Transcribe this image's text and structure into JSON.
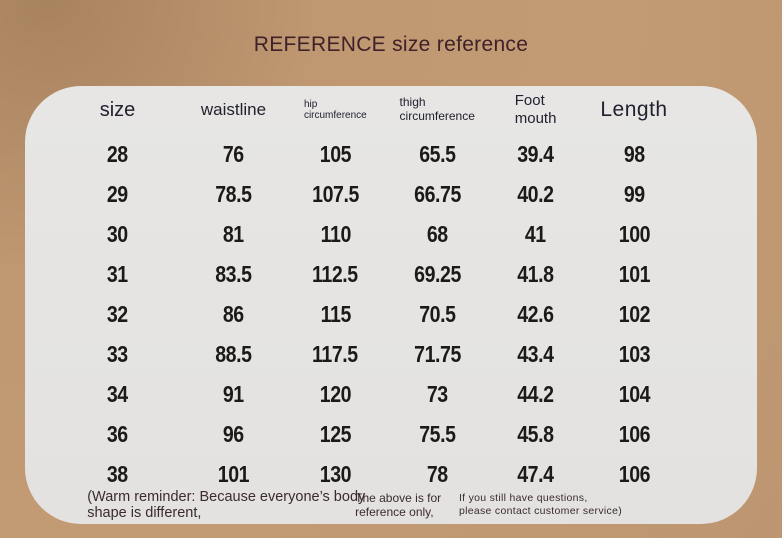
{
  "page": {
    "title": "REFERENCE size reference"
  },
  "colors": {
    "background_tan": "#bf9872",
    "background_corner_shade": "#a8835d",
    "card_background": "#e5e4e2",
    "title_text": "#3f2129",
    "header_text": "#232130",
    "number_text": "#1b1a19",
    "footnote_text": "#3a2c2e"
  },
  "chart_data": {
    "type": "table",
    "title": "REFERENCE size reference",
    "columns": [
      "size",
      "waistline",
      "hip circumference",
      "thigh circumference",
      "Foot mouth",
      "Length"
    ],
    "rows": [
      [
        "28",
        "76",
        "105",
        "65.5",
        "39.4",
        "98"
      ],
      [
        "29",
        "78.5",
        "107.5",
        "66.75",
        "40.2",
        "99"
      ],
      [
        "30",
        "81",
        "110",
        "68",
        "41",
        "100"
      ],
      [
        "31",
        "83.5",
        "112.5",
        "69.25",
        "41.8",
        "101"
      ],
      [
        "32",
        "86",
        "115",
        "70.5",
        "42.6",
        "102"
      ],
      [
        "33",
        "88.5",
        "117.5",
        "71.75",
        "43.4",
        "103"
      ],
      [
        "34",
        "91",
        "120",
        "73",
        "44.2",
        "104"
      ],
      [
        "36",
        "96",
        "125",
        "75.5",
        "45.8",
        "106"
      ],
      [
        "38",
        "101",
        "130",
        "78",
        "47.4",
        "106"
      ]
    ]
  },
  "table": {
    "columns": [
      {
        "id": "size",
        "lines": [
          "size"
        ],
        "style": "xl"
      },
      {
        "id": "waistline",
        "lines": [
          "waistline"
        ],
        "style": "lg"
      },
      {
        "id": "hip-circumference",
        "lines": [
          "hip",
          "circumference"
        ],
        "style": "xs"
      },
      {
        "id": "thigh-circumference",
        "lines": [
          "thigh",
          "circumference"
        ],
        "style": "sm"
      },
      {
        "id": "foot-mouth",
        "lines": [
          "Foot",
          "mouth"
        ],
        "style": "md"
      },
      {
        "id": "length",
        "lines": [
          "Length"
        ],
        "style": "xxl"
      }
    ],
    "rows": [
      [
        "28",
        "76",
        "105",
        "65.5",
        "39.4",
        "98"
      ],
      [
        "29",
        "78.5",
        "107.5",
        "66.75",
        "40.2",
        "99"
      ],
      [
        "30",
        "81",
        "110",
        "68",
        "41",
        "100"
      ],
      [
        "31",
        "83.5",
        "112.5",
        "69.25",
        "41.8",
        "101"
      ],
      [
        "32",
        "86",
        "115",
        "70.5",
        "42.6",
        "102"
      ],
      [
        "33",
        "88.5",
        "117.5",
        "71.75",
        "43.4",
        "103"
      ],
      [
        "34",
        "91",
        "120",
        "73",
        "44.2",
        "104"
      ],
      [
        "36",
        "96",
        "125",
        "75.5",
        "45.8",
        "106"
      ],
      [
        "38",
        "101",
        "130",
        "78",
        "47.4",
        "106"
      ]
    ]
  },
  "footnotes": [
    {
      "id": "warm-reminder",
      "lines": [
        "(Warm reminder: Because everyone’s body",
        "shape is different,"
      ]
    },
    {
      "id": "reference-only",
      "lines": [
        "The above is for",
        "reference only,"
      ]
    },
    {
      "id": "contact-service",
      "lines": [
        "If you still have questions,",
        "please contact customer service)"
      ]
    }
  ]
}
